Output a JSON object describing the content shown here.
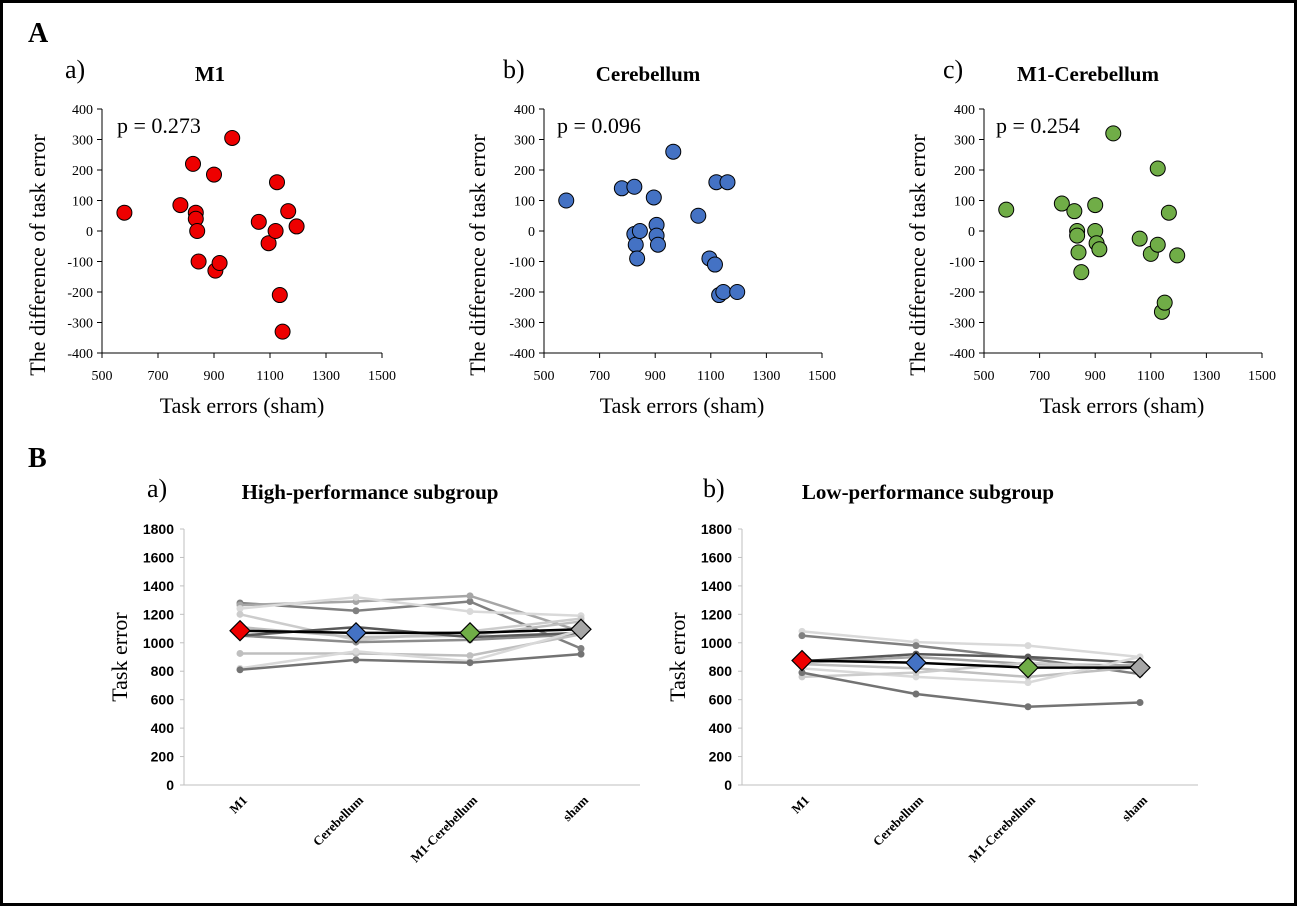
{
  "panel_labels": [
    "A",
    "B"
  ],
  "chart_data": [
    {
      "type": "scatter",
      "label": "a)",
      "title": "M1",
      "annotation": "p = 0.273",
      "xlabel": "Task errors (sham)",
      "ylabel": "The difference of task error",
      "xlim": [
        500,
        1500
      ],
      "ylim": [
        -400,
        400
      ],
      "xticks": [
        "500",
        "700",
        "900",
        "1100",
        "1300",
        "1500"
      ],
      "yticks": [
        "400",
        "300",
        "200",
        "100",
        "0",
        "-100",
        "-200",
        "-300",
        "-400"
      ],
      "color": "#ee0000",
      "points": [
        {
          "x": 580,
          "y": 60
        },
        {
          "x": 780,
          "y": 85
        },
        {
          "x": 825,
          "y": 220
        },
        {
          "x": 835,
          "y": 60
        },
        {
          "x": 835,
          "y": 40
        },
        {
          "x": 840,
          "y": 0
        },
        {
          "x": 845,
          "y": -100
        },
        {
          "x": 900,
          "y": 185
        },
        {
          "x": 905,
          "y": -130
        },
        {
          "x": 920,
          "y": -105
        },
        {
          "x": 965,
          "y": 305
        },
        {
          "x": 1060,
          "y": 30
        },
        {
          "x": 1095,
          "y": -40
        },
        {
          "x": 1120,
          "y": 0
        },
        {
          "x": 1125,
          "y": 160
        },
        {
          "x": 1135,
          "y": -210
        },
        {
          "x": 1145,
          "y": -330
        },
        {
          "x": 1165,
          "y": 65
        },
        {
          "x": 1195,
          "y": 15
        }
      ]
    },
    {
      "type": "scatter",
      "label": "b)",
      "title": "Cerebellum",
      "annotation": "p = 0.096",
      "xlabel": "Task errors (sham)",
      "ylabel": "The difference of task error",
      "xlim": [
        500,
        1500
      ],
      "ylim": [
        -400,
        400
      ],
      "xticks": [
        "500",
        "700",
        "900",
        "1100",
        "1300",
        "1500"
      ],
      "yticks": [
        "400",
        "300",
        "200",
        "100",
        "0",
        "-100",
        "-200",
        "-300",
        "-400"
      ],
      "color": "#4472c4",
      "points": [
        {
          "x": 580,
          "y": 100
        },
        {
          "x": 780,
          "y": 140
        },
        {
          "x": 825,
          "y": 145
        },
        {
          "x": 825,
          "y": -10
        },
        {
          "x": 830,
          "y": -45
        },
        {
          "x": 835,
          "y": -90
        },
        {
          "x": 845,
          "y": 0
        },
        {
          "x": 895,
          "y": 110
        },
        {
          "x": 905,
          "y": 20
        },
        {
          "x": 905,
          "y": -15
        },
        {
          "x": 910,
          "y": -45
        },
        {
          "x": 965,
          "y": 260
        },
        {
          "x": 1055,
          "y": 50
        },
        {
          "x": 1095,
          "y": -90
        },
        {
          "x": 1115,
          "y": -110
        },
        {
          "x": 1120,
          "y": 160
        },
        {
          "x": 1130,
          "y": -210
        },
        {
          "x": 1145,
          "y": -200
        },
        {
          "x": 1160,
          "y": 160
        },
        {
          "x": 1195,
          "y": -200
        }
      ]
    },
    {
      "type": "scatter",
      "label": "c)",
      "title": "M1-Cerebellum",
      "annotation": "p = 0.254",
      "xlabel": "Task errors (sham)",
      "ylabel": "The difference of task error",
      "xlim": [
        500,
        1500
      ],
      "ylim": [
        -400,
        400
      ],
      "xticks": [
        "500",
        "700",
        "900",
        "1100",
        "1300",
        "1500"
      ],
      "yticks": [
        "400",
        "300",
        "200",
        "100",
        "0",
        "-100",
        "-200",
        "-300",
        "-400"
      ],
      "color": "#70ad47",
      "points": [
        {
          "x": 580,
          "y": 70
        },
        {
          "x": 780,
          "y": 90
        },
        {
          "x": 825,
          "y": 65
        },
        {
          "x": 835,
          "y": 0
        },
        {
          "x": 835,
          "y": -15
        },
        {
          "x": 840,
          "y": -70
        },
        {
          "x": 850,
          "y": -135
        },
        {
          "x": 900,
          "y": 85
        },
        {
          "x": 900,
          "y": 0
        },
        {
          "x": 905,
          "y": -40
        },
        {
          "x": 915,
          "y": -60
        },
        {
          "x": 965,
          "y": 320
        },
        {
          "x": 1060,
          "y": -25
        },
        {
          "x": 1100,
          "y": -75
        },
        {
          "x": 1125,
          "y": 205
        },
        {
          "x": 1125,
          "y": -45
        },
        {
          "x": 1140,
          "y": -265
        },
        {
          "x": 1150,
          "y": -235
        },
        {
          "x": 1165,
          "y": 60
        },
        {
          "x": 1195,
          "y": -80
        }
      ]
    },
    {
      "type": "line",
      "label": "a)",
      "title": "High-performance subgroup",
      "ylabel": "Task error",
      "categories": [
        "M1",
        "Cerebellum",
        "M1-Cerebellum",
        "sham"
      ],
      "ylim": [
        0,
        1800
      ],
      "yticks": [
        "0",
        "200",
        "400",
        "600",
        "800",
        "1000",
        "1200",
        "1400",
        "1600",
        "1800"
      ],
      "individuals": [
        {
          "values": [
            1280,
            1225,
            1290,
            960
          ],
          "color": "#808080"
        },
        {
          "values": [
            1265,
            1290,
            1330,
            1080
          ],
          "color": "#a6a6a6"
        },
        {
          "values": [
            1240,
            1320,
            1220,
            1190
          ],
          "color": "#d9d9d9"
        },
        {
          "values": [
            1200,
            1020,
            1080,
            1170
          ],
          "color": "#cccccc"
        },
        {
          "values": [
            1110,
            1040,
            1050,
            1150
          ],
          "color": "#bfbfbf"
        },
        {
          "values": [
            1050,
            1005,
            1020,
            1060
          ],
          "color": "#8c8c8c"
        },
        {
          "values": [
            1050,
            1110,
            1040,
            1070
          ],
          "color": "#595959"
        },
        {
          "values": [
            925,
            925,
            910,
            1060
          ],
          "color": "#bfbfbf"
        },
        {
          "values": [
            820,
            940,
            870,
            1090
          ],
          "color": "#d9d9d9"
        },
        {
          "values": [
            810,
            880,
            860,
            920
          ],
          "color": "#737373"
        }
      ],
      "mean": [
        1085,
        1070,
        1070,
        1095
      ],
      "marker_colors": [
        "#ee0000",
        "#4472c4",
        "#70ad47",
        "#a6a6a6"
      ]
    },
    {
      "type": "line",
      "label": "b)",
      "title": "Low-performance subgroup",
      "ylabel": "Task error",
      "categories": [
        "M1",
        "Cerebellum",
        "M1-Cerebellum",
        "sham"
      ],
      "ylim": [
        0,
        1800
      ],
      "yticks": [
        "0",
        "200",
        "400",
        "600",
        "800",
        "1000",
        "1200",
        "1400",
        "1600",
        "1800"
      ],
      "individuals": [
        {
          "values": [
            1080,
            1005,
            980,
            900
          ],
          "color": "#d9d9d9"
        },
        {
          "values": [
            1050,
            980,
            890,
            780
          ],
          "color": "#808080"
        },
        {
          "values": [
            870,
            920,
            900,
            860
          ],
          "color": "#595959"
        },
        {
          "values": [
            860,
            900,
            850,
            840
          ],
          "color": "#a6a6a6"
        },
        {
          "values": [
            850,
            820,
            760,
            830
          ],
          "color": "#bfbfbf"
        },
        {
          "values": [
            820,
            760,
            720,
            900
          ],
          "color": "#d9d9d9"
        },
        {
          "values": [
            760,
            790,
            860,
            820
          ],
          "color": "#cccccc"
        },
        {
          "values": [
            790,
            640,
            550,
            580
          ],
          "color": "#737373"
        }
      ],
      "mean": [
        875,
        860,
        825,
        825
      ],
      "marker_colors": [
        "#ee0000",
        "#4472c4",
        "#70ad47",
        "#a6a6a6"
      ]
    }
  ]
}
